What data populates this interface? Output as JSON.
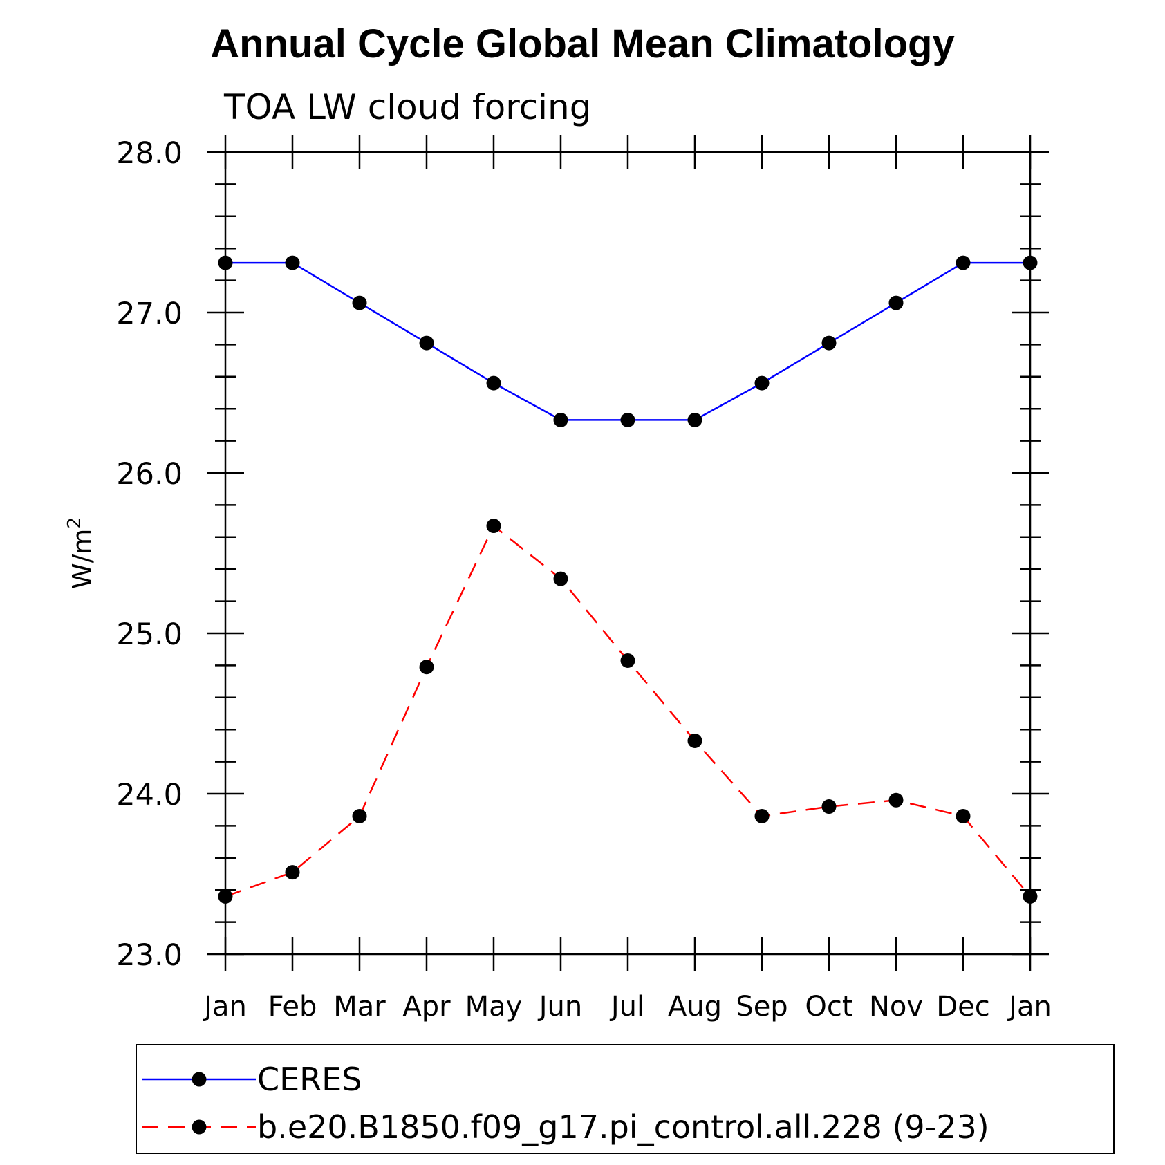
{
  "chart_data": {
    "type": "line",
    "title": "Annual Cycle Global Mean Climatology",
    "subtitle": "TOA LW cloud forcing",
    "ylabel_base": "W/m",
    "ylabel_sup": "2",
    "xlabel": "",
    "categories": [
      "Jan",
      "Feb",
      "Mar",
      "Apr",
      "May",
      "Jun",
      "Jul",
      "Aug",
      "Sep",
      "Oct",
      "Nov",
      "Dec",
      "Jan"
    ],
    "ylim": [
      23.0,
      28.0
    ],
    "yticks": [
      "23.0",
      "24.0",
      "25.0",
      "26.0",
      "27.0",
      "28.0"
    ],
    "grid": false,
    "legend_position": "bottom",
    "series": [
      {
        "name": "CERES",
        "color": "#0000ff",
        "dash": "solid",
        "marker": "filled-circle",
        "values": [
          27.31,
          27.31,
          27.06,
          26.81,
          26.56,
          26.33,
          26.33,
          26.33,
          26.56,
          26.81,
          27.06,
          27.31,
          27.31
        ]
      },
      {
        "name": "b.e20.B1850.f09_g17.pi_control.all.228 (9-23)",
        "color": "#ff0000",
        "dash": "dashed",
        "marker": "filled-circle",
        "values": [
          23.36,
          23.51,
          23.86,
          24.79,
          25.67,
          25.34,
          24.83,
          24.33,
          23.86,
          23.92,
          23.96,
          23.86,
          23.36
        ]
      }
    ]
  }
}
